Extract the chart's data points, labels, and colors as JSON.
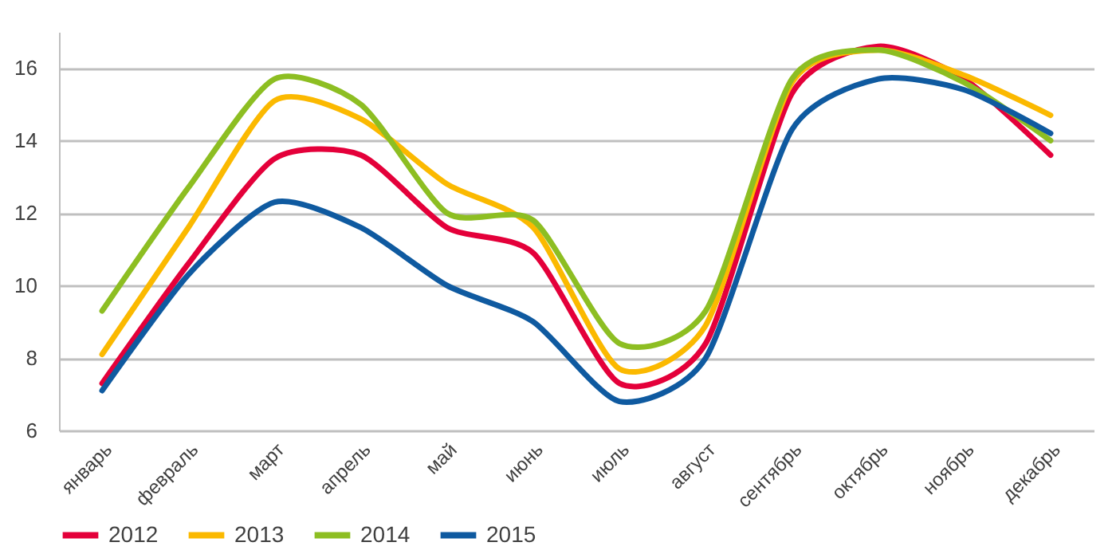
{
  "chart_data": {
    "type": "line",
    "categories": [
      "январь",
      "февраль",
      "март",
      "апрель",
      "май",
      "июнь",
      "июль",
      "август",
      "сентябрь",
      "октябрь",
      "ноябрь",
      "декабрь"
    ],
    "series": [
      {
        "name": "2012",
        "color": "#e4003a",
        "values": [
          7.3,
          10.6,
          13.5,
          13.6,
          11.6,
          10.9,
          7.3,
          8.4,
          15.3,
          16.6,
          15.7,
          13.6
        ]
      },
      {
        "name": "2013",
        "color": "#fbb900",
        "values": [
          8.1,
          11.6,
          15.1,
          14.6,
          12.8,
          11.6,
          7.7,
          8.9,
          15.6,
          16.5,
          15.8,
          14.7
        ]
      },
      {
        "name": "2014",
        "color": "#8dbe22",
        "values": [
          9.3,
          12.7,
          15.7,
          15.0,
          12.0,
          11.8,
          8.4,
          9.3,
          15.7,
          16.5,
          15.6,
          14.0
        ]
      },
      {
        "name": "2015",
        "color": "#0f5aa0",
        "values": [
          7.1,
          10.3,
          12.3,
          11.6,
          10.0,
          9.0,
          6.8,
          8.0,
          14.3,
          15.7,
          15.4,
          14.2
        ]
      }
    ],
    "ylim": [
      6,
      17
    ],
    "yticks": [
      6,
      8,
      10,
      12,
      14,
      16
    ],
    "grid": "y",
    "legend": "bottom",
    "marker": "none",
    "line_style": "solid"
  }
}
